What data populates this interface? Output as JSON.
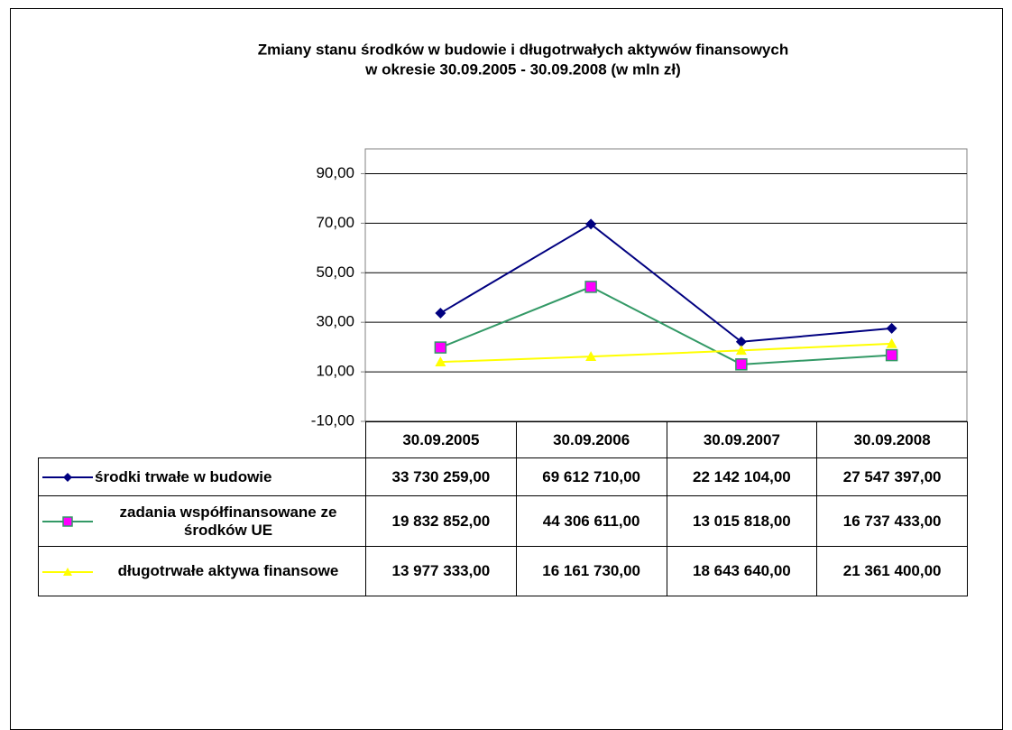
{
  "chart_data": {
    "type": "line",
    "title": [
      "Zmiany stanu środków w budowie i długotrwałych aktywów finansowych",
      "w okresie 30.09.2005 - 30.09.2008 (w mln zł)"
    ],
    "categories": [
      "30.09.2005",
      "30.09.2006",
      "30.09.2007",
      "30.09.2008"
    ],
    "series": [
      {
        "name": "środki trwałe w budowie",
        "color": "#000080",
        "marker": "diamond",
        "marker_color": "#000080",
        "values": [
          33.730259,
          69.61271,
          22.142104,
          27.547397
        ],
        "value_labels": [
          "33 730 259,00",
          "69 612 710,00",
          "22 142 104,00",
          "27 547 397,00"
        ]
      },
      {
        "name": "zadania współfinansowane ze środków UE",
        "color": "#339966",
        "marker": "square",
        "marker_color": "#ff00ff",
        "values": [
          19.832852,
          44.306611,
          13.015818,
          16.737433
        ],
        "value_labels": [
          "19 832 852,00",
          "44 306 611,00",
          "13 015 818,00",
          "16 737 433,00"
        ]
      },
      {
        "name": "długotrwałe aktywa finansowe",
        "color": "#ffff00",
        "marker": "triangle",
        "marker_color": "#ffff00",
        "values": [
          13.977333,
          16.16173,
          18.64364,
          21.3614
        ],
        "value_labels": [
          "13 977 333,00",
          "16 161 730,00",
          "18 643 640,00",
          "21 361 400,00"
        ]
      }
    ],
    "ylim": [
      -10,
      100
    ],
    "yticks": [
      {
        "value": -10,
        "label": "-10,00"
      },
      {
        "value": 10,
        "label": "10,00"
      },
      {
        "value": 30,
        "label": "30,00"
      },
      {
        "value": 50,
        "label": "50,00"
      },
      {
        "value": 70,
        "label": "70,00"
      },
      {
        "value": 90,
        "label": "90,00"
      }
    ],
    "grid": true
  }
}
